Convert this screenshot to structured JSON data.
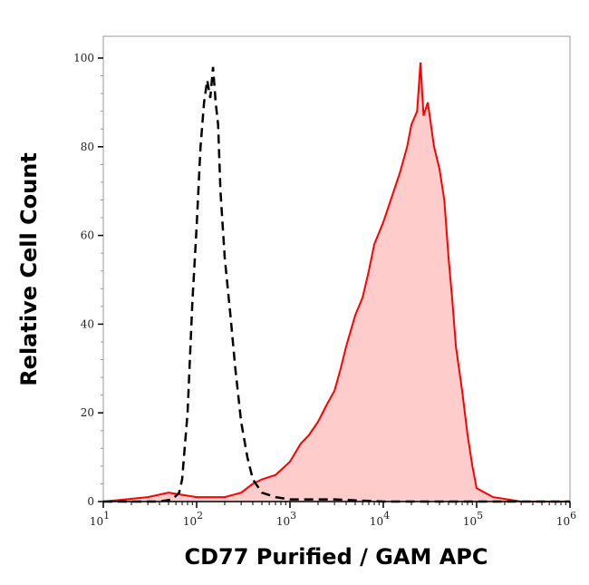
{
  "chart_data": {
    "type": "area",
    "title": "",
    "xlabel": "CD77 Purified / GAM APC",
    "ylabel": "Relative Cell Count",
    "xscale": "log",
    "xlim": [
      10,
      1000000
    ],
    "ylim": [
      0,
      100
    ],
    "x_ticks": [
      {
        "base": "10",
        "exp": "1"
      },
      {
        "base": "10",
        "exp": "2"
      },
      {
        "base": "10",
        "exp": "3"
      },
      {
        "base": "10",
        "exp": "4"
      },
      {
        "base": "10",
        "exp": "5"
      },
      {
        "base": "10",
        "exp": "6"
      }
    ],
    "x_tick_values": [
      10,
      100,
      1000,
      10000,
      100000,
      1000000
    ],
    "y_ticks": [
      "0",
      "20",
      "40",
      "60",
      "80",
      "100"
    ],
    "y_tick_values": [
      0,
      20,
      40,
      60,
      80,
      100
    ],
    "grid": false,
    "series": [
      {
        "style": "dashed line",
        "color": "#000000",
        "points": [
          [
            9,
            0
          ],
          [
            40,
            0
          ],
          [
            55,
            0.5
          ],
          [
            65,
            2
          ],
          [
            70,
            5
          ],
          [
            80,
            20
          ],
          [
            90,
            45
          ],
          [
            100,
            62
          ],
          [
            110,
            80
          ],
          [
            120,
            90
          ],
          [
            130,
            95
          ],
          [
            140,
            91
          ],
          [
            150,
            98
          ],
          [
            160,
            90
          ],
          [
            170,
            85
          ],
          [
            180,
            70
          ],
          [
            200,
            55
          ],
          [
            230,
            42
          ],
          [
            260,
            30
          ],
          [
            300,
            18
          ],
          [
            350,
            10
          ],
          [
            400,
            5
          ],
          [
            500,
            2
          ],
          [
            700,
            1
          ],
          [
            1000,
            0.5
          ],
          [
            2000,
            0.5
          ],
          [
            3000,
            0.5
          ],
          [
            10000,
            0
          ],
          [
            1000000,
            0
          ]
        ]
      },
      {
        "style": "filled area",
        "color": "#ff0000",
        "fill": "#ffcccc",
        "points": [
          [
            9,
            0
          ],
          [
            30,
            1
          ],
          [
            50,
            2
          ],
          [
            100,
            1
          ],
          [
            200,
            1
          ],
          [
            300,
            2
          ],
          [
            400,
            4
          ],
          [
            500,
            5
          ],
          [
            700,
            6
          ],
          [
            1000,
            9
          ],
          [
            1300,
            13
          ],
          [
            1600,
            15
          ],
          [
            2000,
            18
          ],
          [
            2500,
            22
          ],
          [
            3000,
            25
          ],
          [
            3500,
            30
          ],
          [
            4000,
            35
          ],
          [
            5000,
            42
          ],
          [
            6000,
            46
          ],
          [
            7000,
            52
          ],
          [
            8000,
            58
          ],
          [
            10000,
            63
          ],
          [
            12000,
            68
          ],
          [
            15000,
            74
          ],
          [
            18000,
            80
          ],
          [
            20000,
            85
          ],
          [
            23000,
            88
          ],
          [
            25000,
            99
          ],
          [
            27000,
            87
          ],
          [
            30000,
            90
          ],
          [
            35000,
            80
          ],
          [
            40000,
            75
          ],
          [
            45000,
            68
          ],
          [
            50000,
            55
          ],
          [
            55000,
            45
          ],
          [
            60000,
            35
          ],
          [
            70000,
            25
          ],
          [
            80000,
            15
          ],
          [
            90000,
            8
          ],
          [
            100000,
            3
          ],
          [
            150000,
            1
          ],
          [
            300000,
            0
          ],
          [
            1000000,
            0
          ]
        ]
      }
    ]
  }
}
